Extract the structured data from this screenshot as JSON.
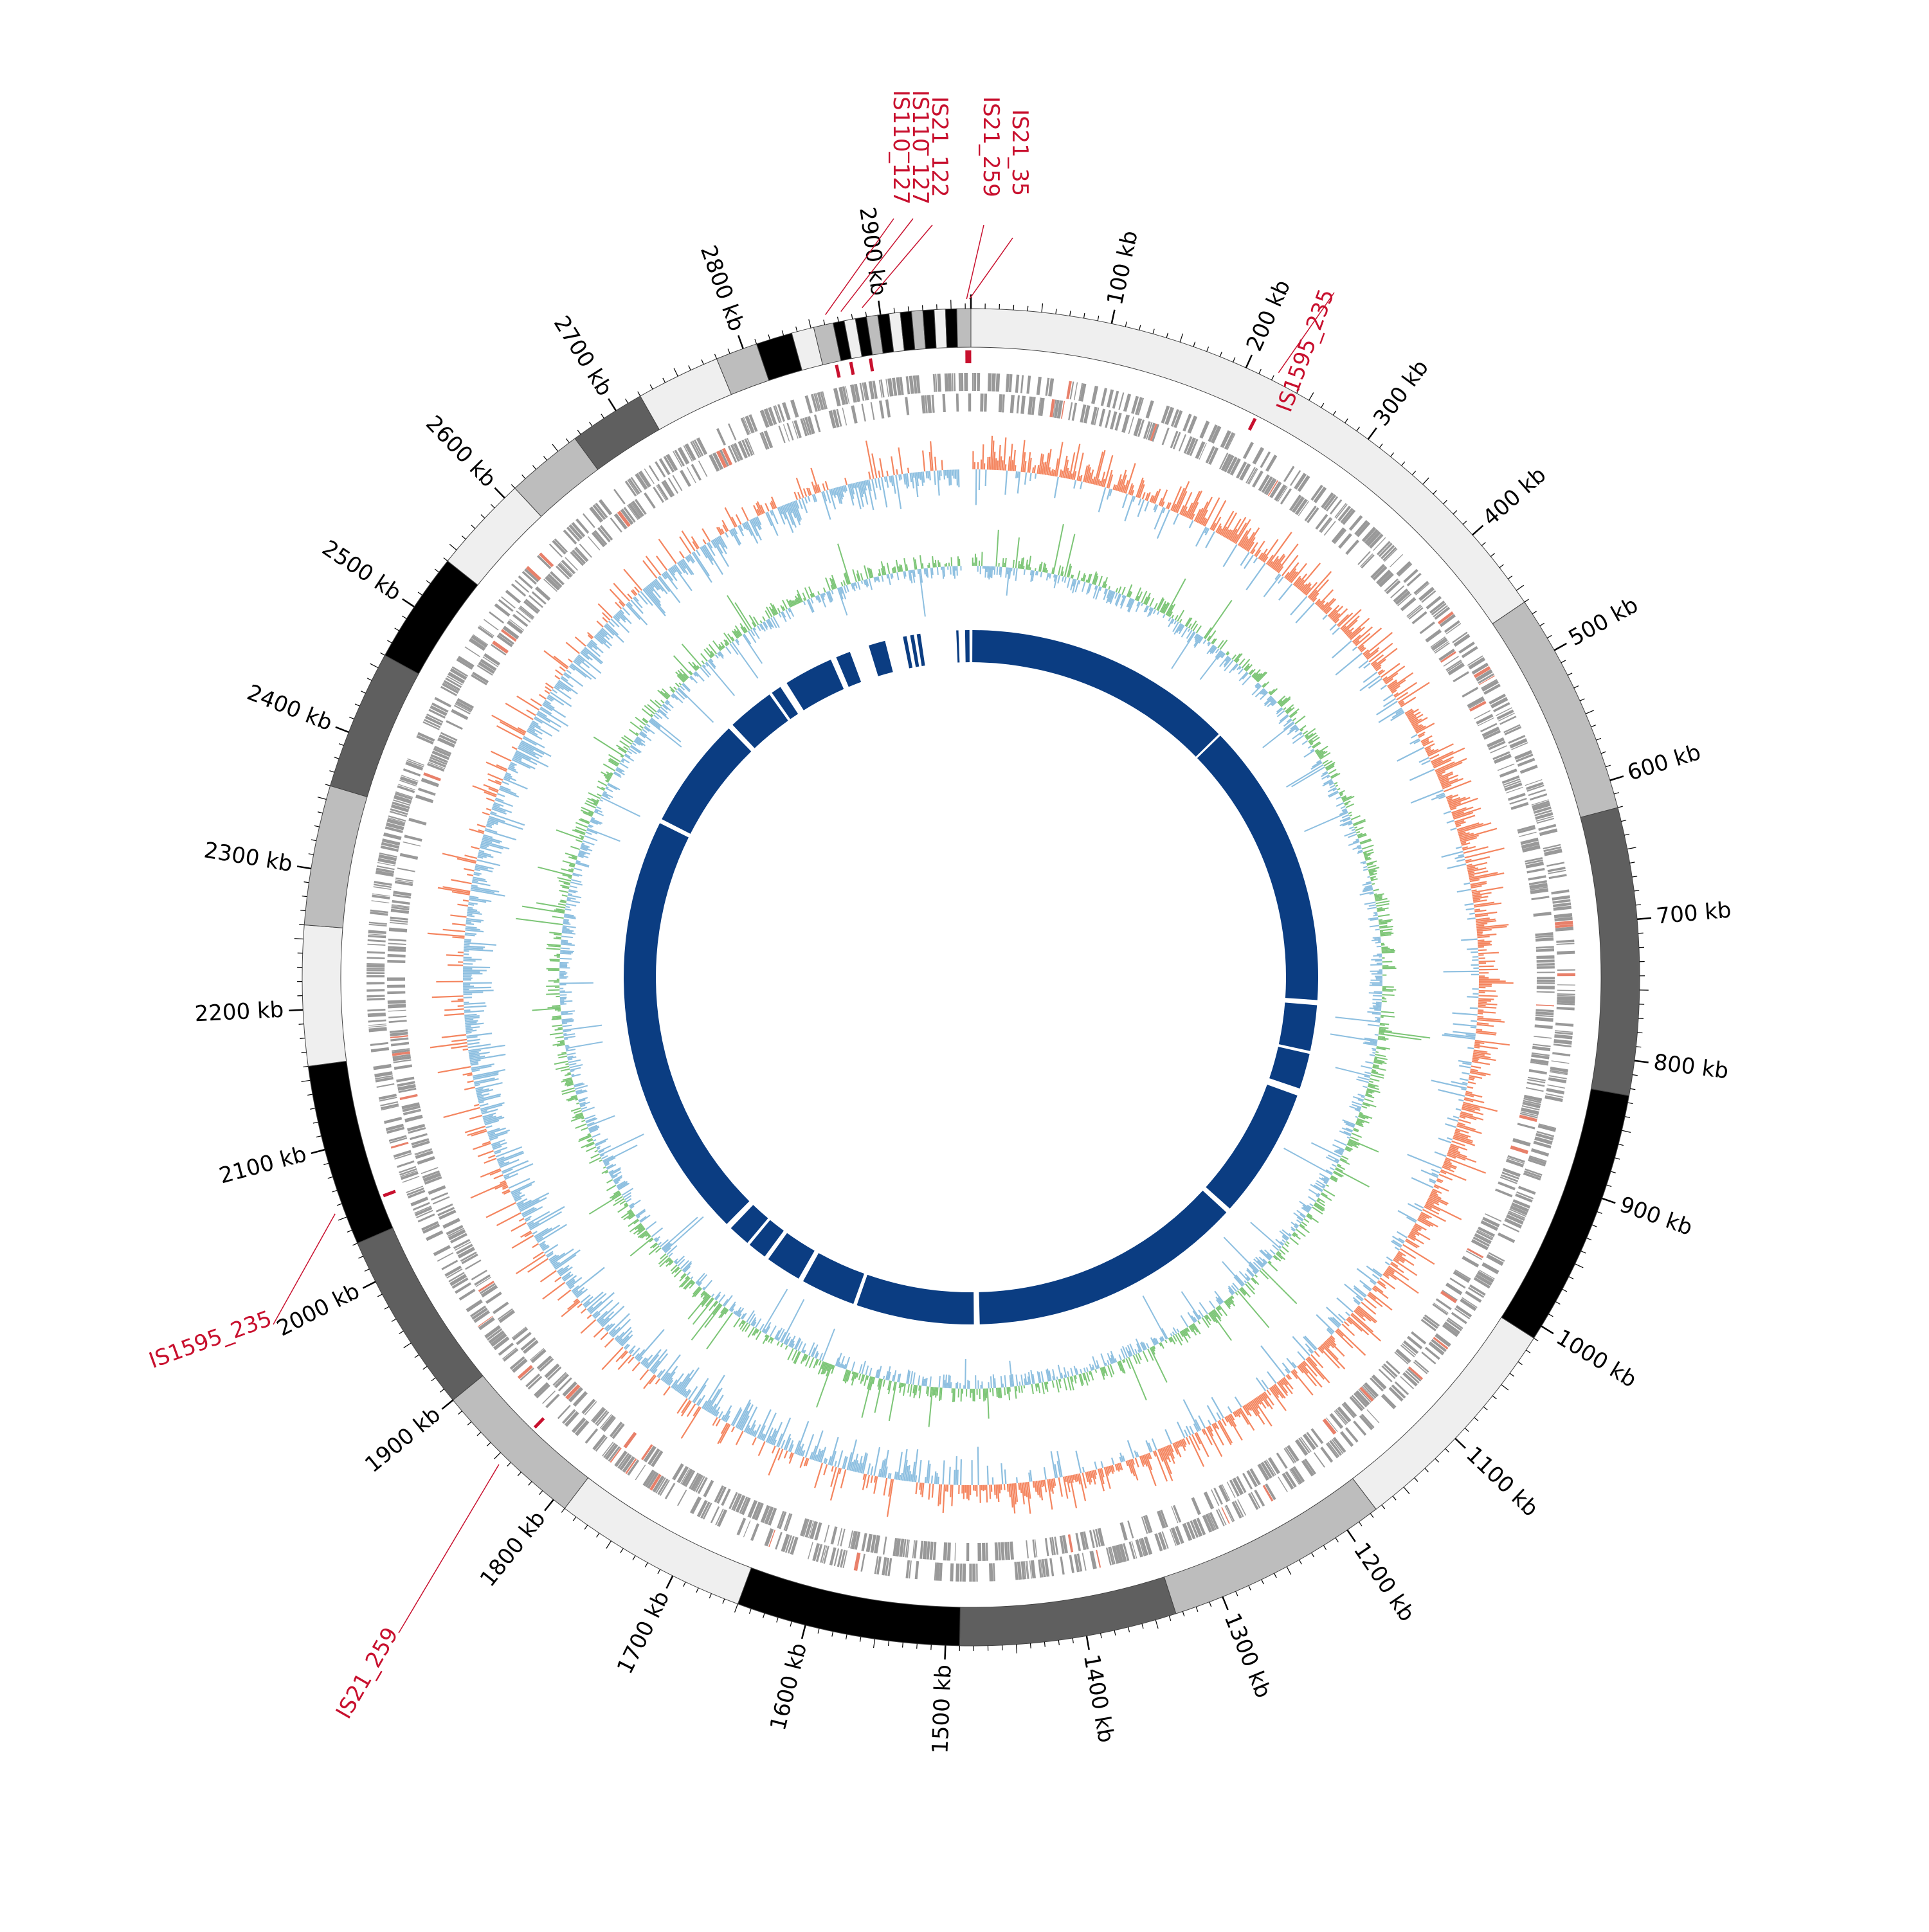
{
  "genome": {
    "total_kb": 2964
  },
  "scale": {
    "unit": "kb",
    "labels": [
      "100 kb",
      "200 kb",
      "300 kb",
      "400 kb",
      "500 kb",
      "600 kb",
      "700 kb",
      "800 kb",
      "900 kb",
      "1000 kb",
      "1100 kb",
      "1200 kb",
      "1300 kb",
      "1400 kb",
      "1500 kb",
      "1600 kb",
      "1700 kb",
      "1800 kb",
      "1900 kb",
      "2000 kb",
      "2100 kb",
      "2200 kb",
      "2300 kb",
      "2400 kb",
      "2500 kb",
      "2600 kb",
      "2700 kb",
      "2800 kb",
      "2900 kb"
    ]
  },
  "contig_ring": {
    "colors": {
      "light": "#efefef",
      "mid": "#bdbdbd",
      "dark": "#5f5f5f",
      "black": "#000000"
    },
    "blocks": [
      {
        "from": 0,
        "to": 460,
        "shade": "light"
      },
      {
        "from": 460,
        "to": 620,
        "shade": "mid"
      },
      {
        "from": 620,
        "to": 825,
        "shade": "dark"
      },
      {
        "from": 825,
        "to": 1010,
        "shade": "black"
      },
      {
        "from": 1010,
        "to": 1175,
        "shade": "light"
      },
      {
        "from": 1175,
        "to": 1335,
        "shade": "mid"
      },
      {
        "from": 1335,
        "to": 1490,
        "shade": "dark"
      },
      {
        "from": 1490,
        "to": 1650,
        "shade": "black"
      },
      {
        "from": 1650,
        "to": 1790,
        "shade": "light"
      },
      {
        "from": 1790,
        "to": 1900,
        "shade": "mid"
      },
      {
        "from": 1900,
        "to": 2030,
        "shade": "dark"
      },
      {
        "from": 2030,
        "to": 2160,
        "shade": "black"
      },
      {
        "from": 2160,
        "to": 2260,
        "shade": "light"
      },
      {
        "from": 2260,
        "to": 2360,
        "shade": "mid"
      },
      {
        "from": 2360,
        "to": 2460,
        "shade": "dark"
      },
      {
        "from": 2460,
        "to": 2540,
        "shade": "black"
      },
      {
        "from": 2540,
        "to": 2610,
        "shade": "light"
      },
      {
        "from": 2610,
        "to": 2665,
        "shade": "mid"
      },
      {
        "from": 2665,
        "to": 2720,
        "shade": "dark"
      },
      {
        "from": 2720,
        "to": 2780,
        "shade": "light"
      },
      {
        "from": 2780,
        "to": 2810,
        "shade": "mid"
      },
      {
        "from": 2810,
        "to": 2836,
        "shade": "black"
      },
      {
        "from": 2836,
        "to": 2852,
        "shade": "light"
      },
      {
        "from": 2852,
        "to": 2866,
        "shade": "mid"
      },
      {
        "from": 2866,
        "to": 2874,
        "shade": "black"
      },
      {
        "from": 2874,
        "to": 2882,
        "shade": "light"
      },
      {
        "from": 2882,
        "to": 2890,
        "shade": "black"
      },
      {
        "from": 2890,
        "to": 2898,
        "shade": "mid"
      },
      {
        "from": 2898,
        "to": 2906,
        "shade": "black"
      },
      {
        "from": 2906,
        "to": 2914,
        "shade": "light"
      },
      {
        "from": 2914,
        "to": 2922,
        "shade": "black"
      },
      {
        "from": 2922,
        "to": 2930,
        "shade": "mid"
      },
      {
        "from": 2930,
        "to": 2938,
        "shade": "black"
      },
      {
        "from": 2938,
        "to": 2946,
        "shade": "light"
      },
      {
        "from": 2946,
        "to": 2954,
        "shade": "black"
      },
      {
        "from": 2954,
        "to": 2964,
        "shade": "mid"
      }
    ]
  },
  "is_elements": {
    "color": "#c8102e",
    "items": [
      {
        "label": "IS110_127",
        "position": 2862,
        "side": "left"
      },
      {
        "label": "IS110_127",
        "position": 2873,
        "side": "left"
      },
      {
        "label": "IS21_122",
        "position": 2888,
        "side": "left"
      },
      {
        "label": "IS21_259",
        "position": 2961,
        "side": "right"
      },
      {
        "label": "IS21_35",
        "position": 2963,
        "side": "right"
      },
      {
        "label": "IS1595_235",
        "position": 222,
        "side": "right"
      },
      {
        "label": "IS1595_235",
        "position": 2055,
        "side": "left"
      },
      {
        "label": "IS21_259",
        "position": 1845,
        "side": "left"
      }
    ]
  },
  "tracks": {
    "genes_color": "#999999",
    "rna_color": "#e8806a",
    "gc_skew_pos_color": "#f4855f",
    "gc_skew_neg_color": "#8dbfe0",
    "gc_content_high_color": "#7cc576",
    "gc_content_low_color": "#8dbfe0",
    "blast_color": "#0b3d82"
  },
  "blast_ring": {
    "segments": [
      {
        "from": 2,
        "to": 375
      },
      {
        "from": 378,
        "to": 772
      },
      {
        "from": 779,
        "to": 842
      },
      {
        "from": 846,
        "to": 895
      },
      {
        "from": 905,
        "to": 1085
      },
      {
        "from": 1092,
        "to": 1470
      },
      {
        "from": 1478,
        "to": 1640
      },
      {
        "from": 1645,
        "to": 1720
      },
      {
        "from": 1727,
        "to": 1776
      },
      {
        "from": 1782,
        "to": 1808
      },
      {
        "from": 1812,
        "to": 1842
      },
      {
        "from": 1850,
        "to": 2440
      },
      {
        "from": 2446,
        "to": 2600
      },
      {
        "from": 2607,
        "to": 2672
      },
      {
        "from": 2676,
        "to": 2690
      },
      {
        "from": 2700,
        "to": 2768
      },
      {
        "from": 2776,
        "to": 2796
      },
      {
        "from": 2823,
        "to": 2846
      },
      {
        "from": 2871,
        "to": 2876
      },
      {
        "from": 2881,
        "to": 2886
      },
      {
        "from": 2890,
        "to": 2895
      },
      {
        "from": 2944,
        "to": 2947
      },
      {
        "from": 2956,
        "to": 2962
      }
    ]
  }
}
